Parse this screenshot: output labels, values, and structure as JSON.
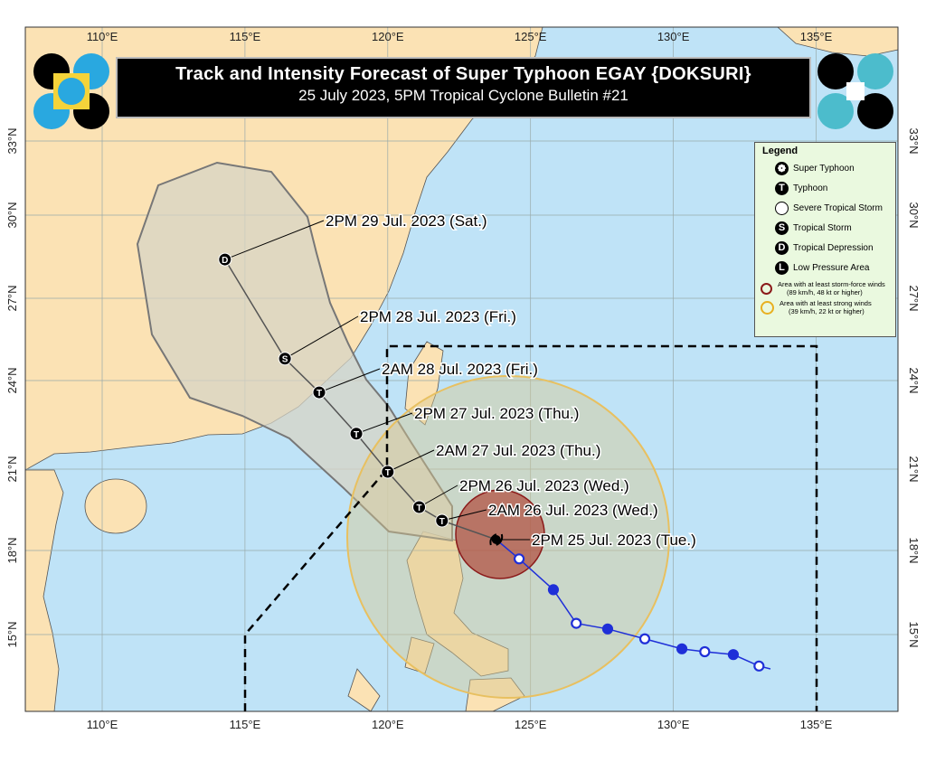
{
  "title": "Track and Intensity Forecast of Super Typhoon EGAY {DOKSURI}",
  "subtitle": "25 July 2023, 5PM Tropical Cyclone Bulletin #21",
  "axes": {
    "lon_ticks": [
      "110°E",
      "115°E",
      "120°E",
      "125°E",
      "130°E",
      "135°E"
    ],
    "lat_ticks": [
      "15°N",
      "18°N",
      "21°N",
      "24°N",
      "27°N",
      "30°N",
      "33°N"
    ]
  },
  "legend": {
    "heading": "Legend",
    "items": [
      {
        "icon": "super-typhoon",
        "label": "Super Typhoon"
      },
      {
        "icon": "T",
        "label": "Typhoon"
      },
      {
        "icon": "severe-tropical-storm",
        "label": "Severe Tropical Storm"
      },
      {
        "icon": "S",
        "label": "Tropical Storm"
      },
      {
        "icon": "D",
        "label": "Tropical Depression"
      },
      {
        "icon": "L",
        "label": "Low Pressure Area"
      }
    ],
    "storm_force": {
      "line1": "Area with at least storm-force winds",
      "line2": "(89 km/h, 48 kt or higher)",
      "color": "#8b1a1a"
    },
    "strong_winds": {
      "line1": "Area with at least strong winds",
      "line2": "(39 km/h, 22 kt or higher)",
      "color": "#e8b020"
    }
  },
  "forecast_track": [
    {
      "label": "2PM 25 Jul. 2023 (Tue.)",
      "category": "super-typhoon",
      "lon": 123.8,
      "lat": 18.4
    },
    {
      "label": "2AM 26 Jul. 2023 (Wed.)",
      "category": "T",
      "lon": 121.9,
      "lat": 19.1
    },
    {
      "label": "2PM 26 Jul. 2023 (Wed.)",
      "category": "T",
      "lon": 121.1,
      "lat": 19.6
    },
    {
      "label": "2AM 27 Jul. 2023 (Thu.)",
      "category": "T",
      "lon": 120.0,
      "lat": 20.9
    },
    {
      "label": "2PM 27 Jul. 2023 (Thu.)",
      "category": "T",
      "lon": 118.9,
      "lat": 22.2
    },
    {
      "label": "2AM 28 Jul. 2023 (Fri.)",
      "category": "T",
      "lon": 117.6,
      "lat": 23.6
    },
    {
      "label": "2PM 28 Jul. 2023 (Fri.)",
      "category": "S",
      "lon": 116.4,
      "lat": 24.8
    },
    {
      "label": "2PM 29 Jul. 2023 (Sat.)",
      "category": "D",
      "lon": 114.3,
      "lat": 28.4
    }
  ],
  "past_track": [
    {
      "lon": 124.6,
      "lat": 17.7,
      "open": true
    },
    {
      "lon": 125.8,
      "lat": 16.6,
      "open": false
    },
    {
      "lon": 126.6,
      "lat": 15.4,
      "open": true
    },
    {
      "lon": 127.7,
      "lat": 15.2,
      "open": false
    },
    {
      "lon": 129.0,
      "lat": 14.85,
      "open": true
    },
    {
      "lon": 130.3,
      "lat": 14.5,
      "open": false
    },
    {
      "lon": 131.1,
      "lat": 14.4,
      "open": true
    },
    {
      "lon": 132.1,
      "lat": 14.3,
      "open": false
    },
    {
      "lon": 133.0,
      "lat": 13.9,
      "open": true
    }
  ],
  "colors": {
    "sea": "#bfe3f7",
    "land": "#fbe2b4",
    "past_track": "#1f2fd8",
    "cone": "#ddd8c8",
    "storm_force": "#b04a3a",
    "strong_winds": "#d8c890"
  }
}
